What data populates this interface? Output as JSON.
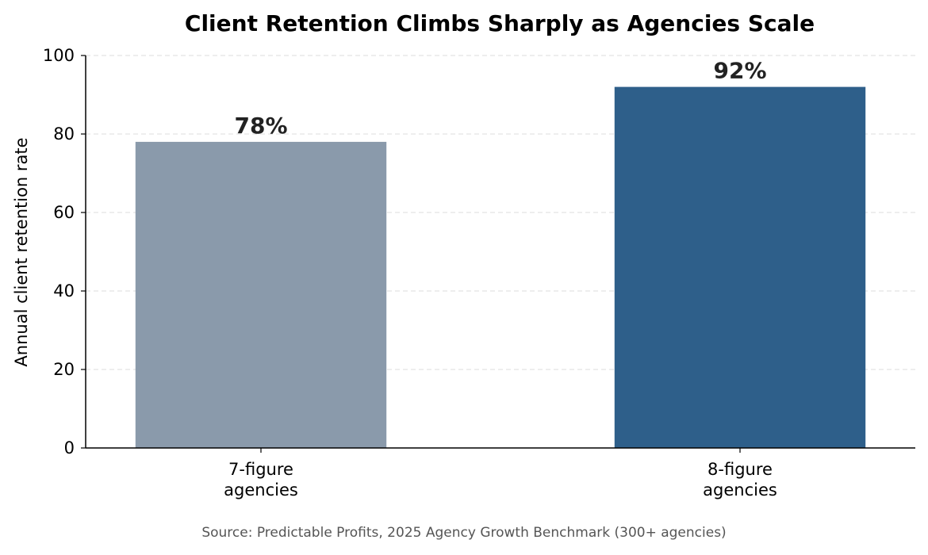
{
  "chart_data": {
    "type": "bar",
    "title": "Client Retention Climbs Sharply as Agencies Scale",
    "xlabel": "",
    "ylabel": "Annual client retention rate",
    "categories": [
      [
        "7-figure",
        "agencies"
      ],
      [
        "8-figure",
        "agencies"
      ]
    ],
    "values": [
      78,
      92
    ],
    "data_labels": [
      "78%",
      "92%"
    ],
    "colors": [
      "#8a9aab",
      "#2e5f8a"
    ],
    "ylim": [
      0,
      100
    ],
    "yticks": [
      0,
      20,
      40,
      60,
      80,
      100
    ],
    "grid": true,
    "legend": "none",
    "source": "Source: Predictable Profits, 2025 Agency Growth Benchmark (300+ agencies)"
  }
}
